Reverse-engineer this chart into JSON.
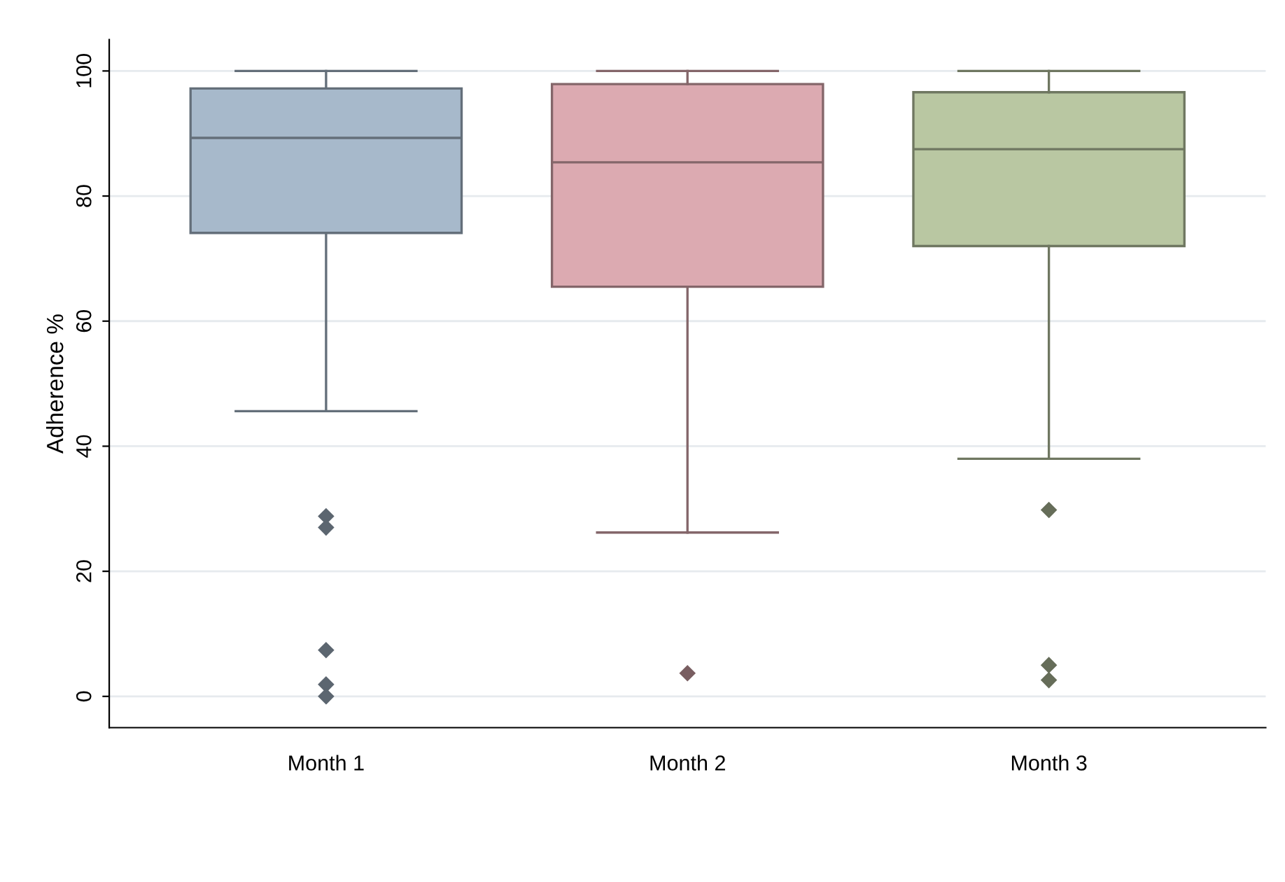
{
  "chart_data": {
    "type": "box",
    "ylabel": "Adherence %",
    "categories": [
      "Month 1",
      "Month 2",
      "Month 3"
    ],
    "colors": [
      "#a7b9cb",
      "#dcaab1",
      "#b9c7a2"
    ],
    "boxes": [
      {
        "low": 45.6,
        "q1": 74.1,
        "median": 89.3,
        "q3": 97.2,
        "high": 100,
        "outliers": [
          28.8,
          27.0,
          7.4,
          1.9,
          0
        ]
      },
      {
        "low": 26.2,
        "q1": 65.5,
        "median": 85.4,
        "q3": 97.9,
        "high": 100,
        "outliers": [
          3.7
        ]
      },
      {
        "low": 38.0,
        "q1": 72.0,
        "median": 87.5,
        "q3": 96.6,
        "high": 100,
        "outliers": [
          29.8,
          5.0,
          2.6
        ]
      }
    ],
    "ylim": [
      -5,
      105
    ],
    "yticks": [
      0,
      20,
      40,
      60,
      80,
      100
    ],
    "grid": "y",
    "marker": "diamond"
  }
}
